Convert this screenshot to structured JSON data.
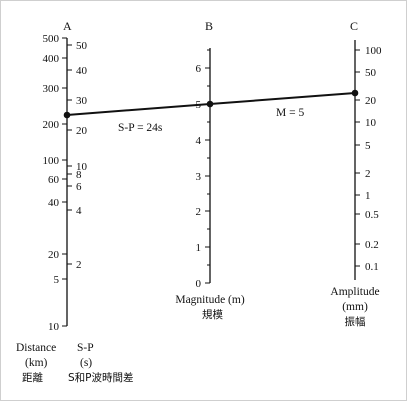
{
  "scales": {
    "A": {
      "letter": "A",
      "distance": {
        "name": "Distance",
        "unit": "(km)",
        "translation": "距離",
        "ticks": [
          "500",
          "400",
          "300",
          "200",
          "100",
          "60",
          "40",
          "20",
          "5",
          "10"
        ]
      },
      "sp": {
        "name": "S-P",
        "unit": "(s)",
        "translation": "S和P波時間差",
        "ticks": [
          "50",
          "40",
          "30",
          "20",
          "10",
          "8",
          "6",
          "4",
          "2"
        ]
      }
    },
    "B": {
      "letter": "B",
      "name": "Magnitude (m)",
      "translation": "規模",
      "ticks": [
        "6",
        "5",
        "4",
        "3",
        "2",
        "1",
        "0"
      ]
    },
    "C": {
      "letter": "C",
      "name": "Amplitude",
      "unit": "(mm)",
      "translation": "振幅",
      "ticks": [
        "100",
        "50",
        "20",
        "10",
        "5",
        "2",
        "1",
        "0.5",
        "0.2",
        "0.1"
      ]
    }
  },
  "line": {
    "sp_label": "S-P = 24s",
    "magnitude_label": "M = 5"
  }
}
